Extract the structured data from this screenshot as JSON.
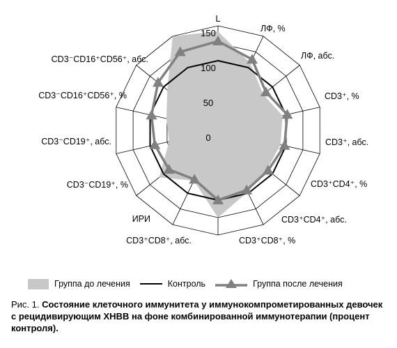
{
  "chart_data": {
    "type": "radar",
    "axes": [
      "L",
      "ЛФ, %",
      "ЛФ, абс.",
      "CD3⁺, %",
      "CD3⁺, абс.",
      "CD3⁺CD4⁺, %",
      "CD3⁺CD4⁺, абс.",
      "CD3⁺CD8⁺, %",
      "CD3⁺CD8⁺, абс.",
      "ИРИ",
      "CD3⁻CD19⁺, %",
      "CD3⁻CD19⁺, абс.",
      "CD3⁻CD16⁺CD56⁺, %",
      "CD3⁻CD16⁺CD56⁺, абс."
    ],
    "rlim": [
      0,
      150
    ],
    "ticks": [
      "0",
      "50",
      "100",
      "150"
    ],
    "tick_values": [
      0,
      50,
      100,
      150
    ],
    "series": [
      {
        "name": "Группа до лечения",
        "style": "filled",
        "values": [
          142,
          107,
          83,
          95,
          92,
          90,
          98,
          125,
          80,
          108,
          72,
          76,
          93,
          150
        ]
      },
      {
        "name": "Контроль",
        "style": "line",
        "values": [
          100,
          100,
          100,
          100,
          100,
          100,
          100,
          100,
          100,
          100,
          100,
          100,
          100,
          100
        ]
      },
      {
        "name": "Группа после лечения",
        "style": "line-triangles",
        "values": [
          128,
          113,
          88,
          102,
          98,
          92,
          95,
          100,
          78,
          90,
          93,
          98,
          110,
          125
        ]
      }
    ],
    "colors": {
      "grid": "#000000",
      "fill": "#c8c8c8",
      "control": "#000000",
      "after": "#808080"
    },
    "legend_position": "bottom"
  },
  "legend": {
    "before": "Группа до лечения",
    "control": "Контроль",
    "after": "Группа после лечения"
  },
  "caption": {
    "prefix": "Рис. 1. ",
    "text": "Состояние клеточного иммунитета у иммунокомпрометированных девочек с рецидивирующим ХНВВ на фоне комбинированной иммунотерапии (процент контроля)."
  }
}
